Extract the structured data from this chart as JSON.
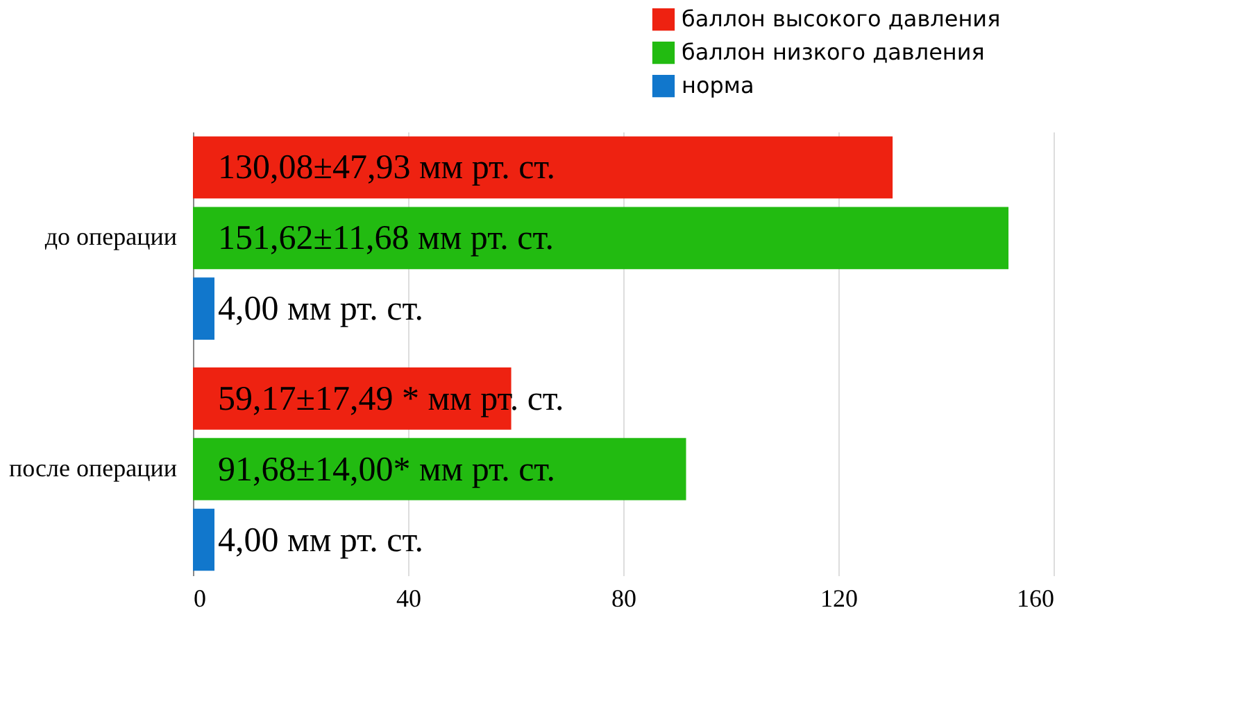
{
  "chart_data": {
    "type": "bar",
    "orientation": "horizontal",
    "categories": [
      "до операции",
      "после операции"
    ],
    "series": [
      {
        "name": "баллон высокого давления",
        "color": "#ee2211",
        "values": [
          130.08,
          59.17
        ],
        "value_labels": [
          "130,08±47,93 мм рт. ст.",
          "59,17±17,49 * мм рт. ст."
        ]
      },
      {
        "name": "баллон низкого давления",
        "color": "#22bb11",
        "values": [
          151.62,
          91.68
        ],
        "value_labels": [
          "151,62±11,68 мм рт. ст.",
          "91,68±14,00* мм рт. ст."
        ]
      },
      {
        "name": "норма",
        "color": "#1177cc",
        "values": [
          4.0,
          4.0
        ],
        "value_labels": [
          "4,00 мм рт. ст.",
          "4,00 мм рт. ст."
        ]
      }
    ],
    "xlim": [
      0,
      160
    ],
    "xticks": [
      0,
      40,
      80,
      120,
      160
    ],
    "grid": "x",
    "legend": "top right"
  }
}
